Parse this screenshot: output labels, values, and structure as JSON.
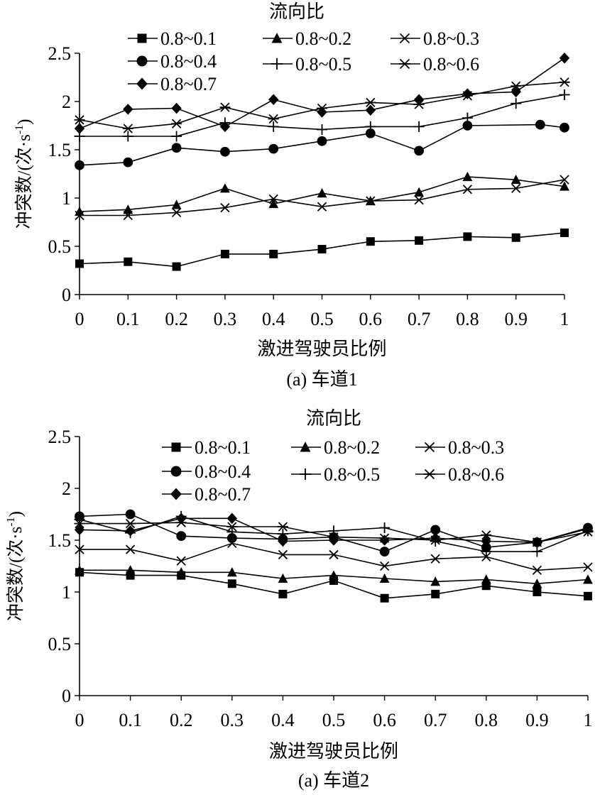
{
  "chart_data": [
    {
      "type": "line",
      "title": "流向比",
      "caption": "(a) 车道1",
      "xlabel": "激进驾驶员比例",
      "ylabel_main": "冲突数/(次·s",
      "ylabel_sup": "-1",
      "ylabel_close": ")",
      "xlim": [
        0,
        1
      ],
      "ylim": [
        0,
        2.5
      ],
      "xticks": [
        "0",
        "0.1",
        "0.2",
        "0.3",
        "0.4",
        "0.5",
        "0.6",
        "0.7",
        "0.8",
        "0.9",
        "1"
      ],
      "yticks": [
        "0",
        "0.5",
        "1",
        "1.5",
        "2",
        "2.5"
      ],
      "series": [
        {
          "name": "0.8~0.1",
          "marker": "square",
          "x": [
            0,
            0.1,
            0.2,
            0.3,
            0.4,
            0.5,
            0.6,
            0.7,
            0.8,
            0.9,
            1
          ],
          "values": [
            0.32,
            0.34,
            0.29,
            0.42,
            0.42,
            0.47,
            0.55,
            0.56,
            0.6,
            0.59,
            0.64
          ]
        },
        {
          "name": "0.8~0.2",
          "marker": "triangle",
          "x": [
            0,
            0.1,
            0.2,
            0.3,
            0.4,
            0.5,
            0.6,
            0.7,
            0.8,
            0.9,
            1
          ],
          "values": [
            0.86,
            0.88,
            0.93,
            1.1,
            0.94,
            1.05,
            0.97,
            1.06,
            1.22,
            1.19,
            1.12
          ]
        },
        {
          "name": "0.8~0.3",
          "marker": "x",
          "x": [
            0,
            0.1,
            0.2,
            0.3,
            0.4,
            0.5,
            0.6,
            0.7,
            0.8,
            0.9,
            1
          ],
          "values": [
            0.82,
            0.82,
            0.85,
            0.9,
            0.99,
            0.91,
            0.97,
            0.98,
            1.09,
            1.1,
            1.19
          ]
        },
        {
          "name": "0.8~0.4",
          "marker": "circle",
          "x": [
            0,
            0.1,
            0.2,
            0.3,
            0.4,
            0.5,
            0.6,
            0.7,
            0.8,
            0.95,
            1
          ],
          "values": [
            1.34,
            1.37,
            1.52,
            1.48,
            1.51,
            1.59,
            1.67,
            1.49,
            1.75,
            1.76,
            1.73
          ]
        },
        {
          "name": "0.8~0.5",
          "marker": "plus",
          "x": [
            0,
            0.1,
            0.2,
            0.3,
            0.4,
            0.5,
            0.6,
            0.7,
            0.8,
            0.9,
            1
          ],
          "values": [
            1.64,
            1.64,
            1.64,
            1.78,
            1.74,
            1.71,
            1.74,
            1.74,
            1.83,
            1.98,
            2.07
          ]
        },
        {
          "name": "0.8~0.6",
          "marker": "asterisk",
          "x": [
            0,
            0.1,
            0.2,
            0.3,
            0.4,
            0.5,
            0.6,
            0.7,
            0.8,
            0.9,
            1
          ],
          "values": [
            1.81,
            1.72,
            1.77,
            1.94,
            1.82,
            1.93,
            1.99,
            1.97,
            2.06,
            2.16,
            2.2
          ]
        },
        {
          "name": "0.8~0.7",
          "marker": "diamond",
          "x": [
            0,
            0.1,
            0.2,
            0.3,
            0.4,
            0.5,
            0.6,
            0.7,
            0.8,
            0.9,
            1
          ],
          "values": [
            1.72,
            1.92,
            1.93,
            1.74,
            2.02,
            1.89,
            1.91,
            2.02,
            2.08,
            2.1,
            2.45
          ]
        }
      ]
    },
    {
      "type": "line",
      "title": "流向比",
      "caption": "(a) 车道2",
      "xlabel": "激进驾驶员比例",
      "ylabel_main": "冲突数/(次·s",
      "ylabel_sup": "-1",
      "ylabel_close": ")",
      "xlim": [
        0,
        1
      ],
      "ylim": [
        0,
        2.5
      ],
      "xticks": [
        "0",
        "0.1",
        "0.2",
        "0.3",
        "0.4",
        "0.5",
        "0.6",
        "0.7",
        "0.8",
        "0.9",
        "1"
      ],
      "yticks": [
        "0",
        "0.5",
        "1",
        "1.5",
        "2",
        "2.5"
      ],
      "series": [
        {
          "name": "0.8~0.1",
          "marker": "square",
          "x": [
            0,
            0.1,
            0.2,
            0.3,
            0.4,
            0.5,
            0.6,
            0.7,
            0.8,
            0.9,
            1
          ],
          "values": [
            1.19,
            1.16,
            1.16,
            1.08,
            0.98,
            1.11,
            0.94,
            0.98,
            1.06,
            1.0,
            0.96
          ]
        },
        {
          "name": "0.8~0.2",
          "marker": "triangle",
          "x": [
            0,
            0.1,
            0.2,
            0.3,
            0.4,
            0.5,
            0.6,
            0.7,
            0.8,
            0.9,
            1
          ],
          "values": [
            1.21,
            1.21,
            1.19,
            1.19,
            1.13,
            1.16,
            1.13,
            1.1,
            1.12,
            1.08,
            1.12
          ]
        },
        {
          "name": "0.8~0.3",
          "marker": "x",
          "x": [
            0,
            0.1,
            0.2,
            0.3,
            0.4,
            0.5,
            0.6,
            0.7,
            0.8,
            0.9,
            1
          ],
          "values": [
            1.41,
            1.41,
            1.3,
            1.47,
            1.36,
            1.36,
            1.25,
            1.32,
            1.34,
            1.21,
            1.24
          ]
        },
        {
          "name": "0.8~0.4",
          "marker": "circle",
          "x": [
            0,
            0.1,
            0.2,
            0.3,
            0.4,
            0.5,
            0.6,
            0.7,
            0.8,
            0.9,
            1
          ],
          "values": [
            1.73,
            1.75,
            1.54,
            1.52,
            1.51,
            1.53,
            1.39,
            1.6,
            1.43,
            1.48,
            1.62
          ]
        },
        {
          "name": "0.8~0.5",
          "marker": "plus",
          "x": [
            0,
            0.1,
            0.2,
            0.3,
            0.4,
            0.5,
            0.6,
            0.7,
            0.8,
            0.9,
            1
          ],
          "values": [
            1.7,
            1.57,
            1.73,
            1.58,
            1.56,
            1.59,
            1.62,
            1.49,
            1.39,
            1.39,
            1.59
          ]
        },
        {
          "name": "0.8~0.6",
          "marker": "asterisk",
          "x": [
            0,
            0.1,
            0.2,
            0.3,
            0.4,
            0.5,
            0.6,
            0.7,
            0.8,
            0.9,
            1
          ],
          "values": [
            1.66,
            1.66,
            1.67,
            1.63,
            1.63,
            1.53,
            1.52,
            1.5,
            1.55,
            1.48,
            1.58
          ]
        },
        {
          "name": "0.8~0.7",
          "marker": "diamond",
          "x": [
            0,
            0.1,
            0.2,
            0.3,
            0.4,
            0.5,
            0.6,
            0.7,
            0.8,
            0.9,
            1
          ],
          "values": [
            1.6,
            1.59,
            1.71,
            1.71,
            1.49,
            1.5,
            1.5,
            1.52,
            1.49,
            1.48,
            1.61
          ]
        }
      ]
    }
  ]
}
